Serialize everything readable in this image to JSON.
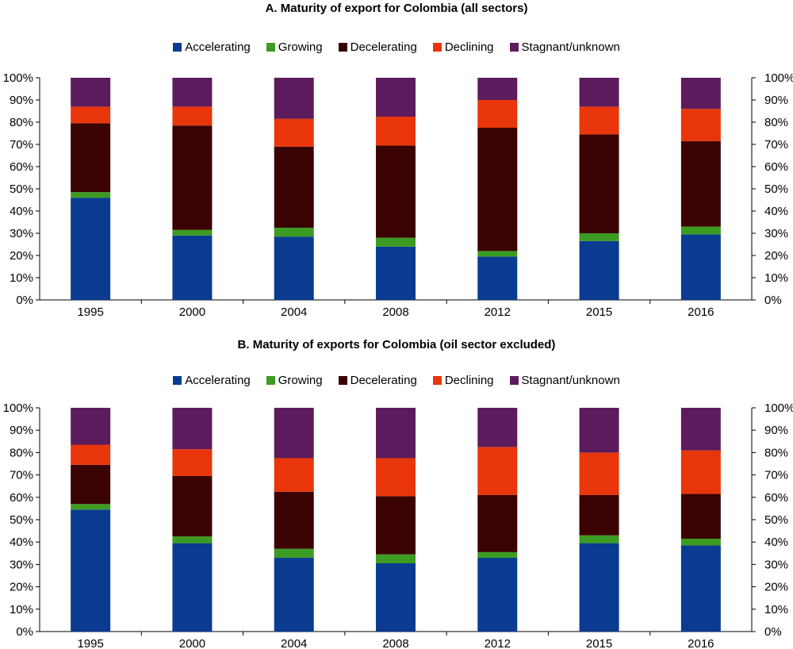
{
  "chart_data": [
    {
      "type": "bar",
      "stacked": true,
      "title": "A. Maturity of export for Colombia (all sectors)",
      "categories": [
        "1995",
        "2000",
        "2004",
        "2008",
        "2012",
        "2015",
        "2016"
      ],
      "series": [
        {
          "name": "Accelerating",
          "color": "#0a3b91",
          "values": [
            46,
            29,
            28.5,
            24,
            19.5,
            26.5,
            29.5
          ]
        },
        {
          "name": "Growing",
          "color": "#3c9b22",
          "values": [
            2.5,
            2.5,
            4,
            4,
            2.5,
            3.5,
            3.5
          ]
        },
        {
          "name": "Decelerating",
          "color": "#3b0202",
          "values": [
            31,
            47,
            36.5,
            41.5,
            55.5,
            44.5,
            38.5
          ]
        },
        {
          "name": "Declining",
          "color": "#e8360a",
          "values": [
            7.5,
            8.5,
            12.5,
            13,
            12.5,
            12.5,
            14.5
          ]
        },
        {
          "name": "Stagnant/unknown",
          "color": "#5c1b5c",
          "values": [
            13,
            13,
            18.5,
            17.5,
            10,
            13,
            14
          ]
        }
      ],
      "ylim": [
        0,
        100
      ],
      "yticks": [
        "0%",
        "10%",
        "20%",
        "30%",
        "40%",
        "50%",
        "60%",
        "70%",
        "80%",
        "90%",
        "100%"
      ],
      "legend_position": "top",
      "grid": false
    },
    {
      "type": "bar",
      "stacked": true,
      "title": "B. Maturity of exports for Colombia (oil sector excluded)",
      "categories": [
        "1995",
        "2000",
        "2004",
        "2008",
        "2012",
        "2015",
        "2016"
      ],
      "series": [
        {
          "name": "Accelerating",
          "color": "#0a3b91",
          "values": [
            54.5,
            39.5,
            33,
            30.5,
            33,
            39.5,
            38.5
          ]
        },
        {
          "name": "Growing",
          "color": "#3c9b22",
          "values": [
            2.5,
            3,
            4,
            4,
            2.5,
            3.5,
            3
          ]
        },
        {
          "name": "Decelerating",
          "color": "#3b0202",
          "values": [
            17.5,
            27,
            25.5,
            26,
            25.5,
            18,
            20
          ]
        },
        {
          "name": "Declining",
          "color": "#e8360a",
          "values": [
            9,
            12,
            15,
            17,
            21.5,
            19,
            19.5
          ]
        },
        {
          "name": "Stagnant/unknown",
          "color": "#5c1b5c",
          "values": [
            16.5,
            18.5,
            22.5,
            22.5,
            17.5,
            20,
            19
          ]
        }
      ],
      "ylim": [
        0,
        100
      ],
      "yticks": [
        "0%",
        "10%",
        "20%",
        "30%",
        "40%",
        "50%",
        "60%",
        "70%",
        "80%",
        "90%",
        "100%"
      ],
      "legend_position": "top",
      "grid": false
    }
  ]
}
